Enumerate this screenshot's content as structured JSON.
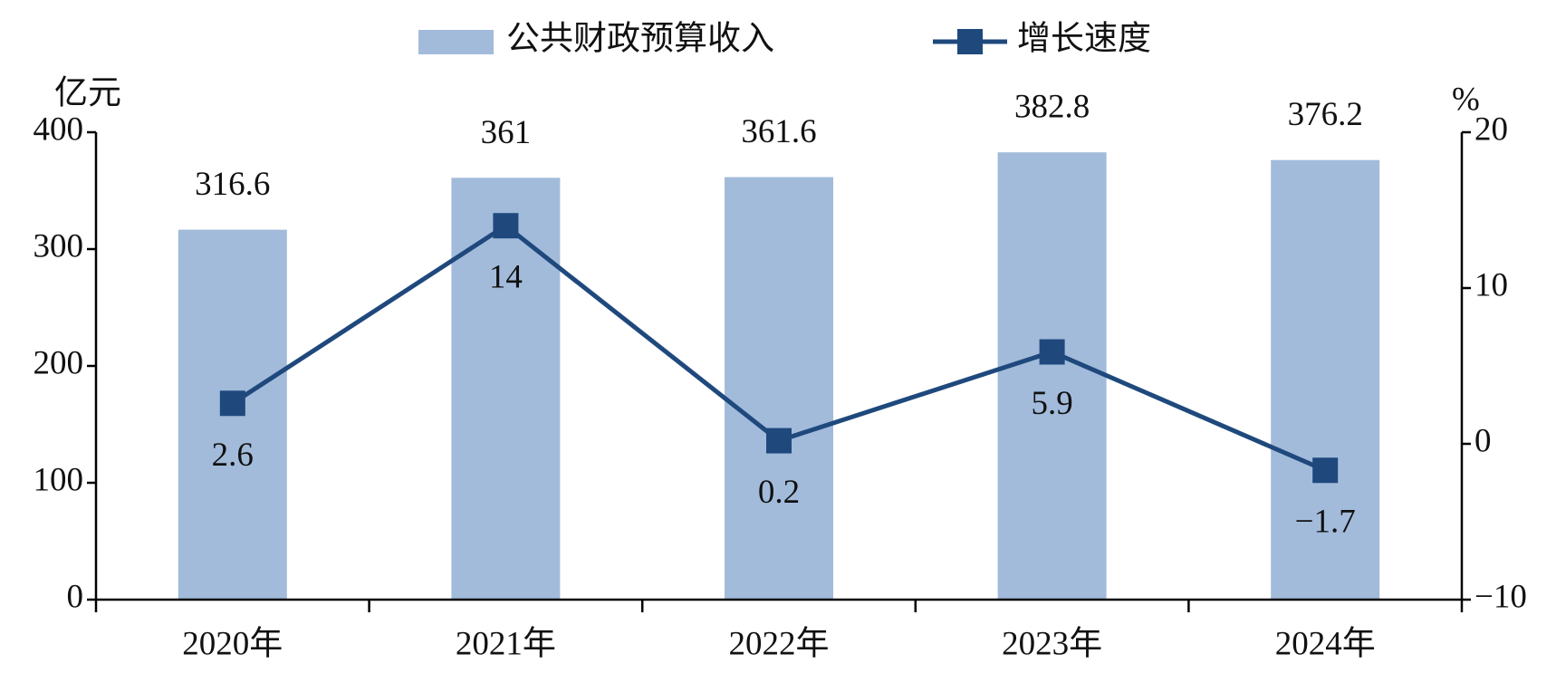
{
  "chart_data": {
    "type": "bar-line",
    "categories": [
      "2020年",
      "2021年",
      "2022年",
      "2023年",
      "2024年"
    ],
    "y_label": "亿元",
    "y2_label": "%",
    "series": [
      {
        "name": "公共财政预算收入",
        "type": "bar",
        "color": "#a2bbdb",
        "values": [
          316.6,
          361,
          361.6,
          382.8,
          376.2
        ]
      },
      {
        "name": "增长速度",
        "type": "line",
        "axis": "y2",
        "color": "#1f497d",
        "values": [
          2.6,
          14,
          0.2,
          5.9,
          -1.7
        ],
        "value_labels": [
          "2.6",
          "14",
          "0.2",
          "5.9",
          "−1.7"
        ]
      }
    ],
    "ylim": [
      0,
      400
    ],
    "yticks": [
      0,
      100,
      200,
      300,
      400
    ],
    "y2lim": [
      -10,
      20
    ],
    "y2ticks": [
      {
        "value": -10,
        "label": "−10"
      },
      0,
      10,
      20
    ]
  }
}
